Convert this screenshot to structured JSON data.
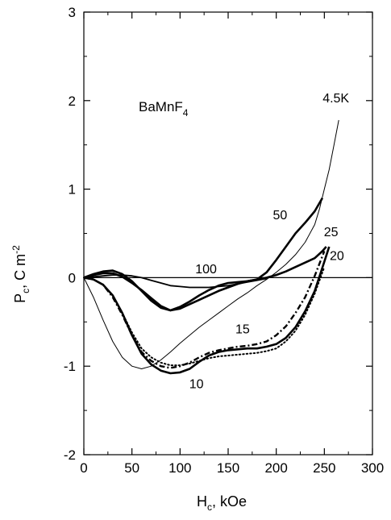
{
  "chart_data": {
    "type": "line",
    "compound_label": {
      "main": "BaMnF",
      "sub": "4"
    },
    "xlabel": {
      "main": "H",
      "sub": "c",
      "rest": ", kOe"
    },
    "ylabel": {
      "main": "P",
      "sub": "c",
      "rest": ",  C m",
      "sup": "-2"
    },
    "xlim": [
      0,
      300
    ],
    "ylim": [
      -2,
      3
    ],
    "xticks": [
      0,
      50,
      100,
      150,
      200,
      250,
      300
    ],
    "yticks": [
      -2,
      -1,
      0,
      1,
      2,
      3
    ],
    "grid": false,
    "legend": "none",
    "series": [
      {
        "name": "4.5K",
        "style": "thin",
        "x": [
          0,
          10,
          20,
          30,
          40,
          50,
          60,
          70,
          80,
          90,
          100,
          110,
          120,
          130,
          140,
          150,
          160,
          170,
          180,
          190,
          200,
          210,
          220,
          230,
          240,
          245,
          250,
          255,
          260,
          265
        ],
        "y": [
          0,
          -0.22,
          -0.48,
          -0.72,
          -0.9,
          -1.0,
          -1.03,
          -1.0,
          -0.93,
          -0.84,
          -0.74,
          -0.65,
          -0.56,
          -0.48,
          -0.4,
          -0.32,
          -0.24,
          -0.17,
          -0.09,
          -0.02,
          0.06,
          0.15,
          0.26,
          0.4,
          0.6,
          0.78,
          1.0,
          1.22,
          1.5,
          1.78
        ]
      },
      {
        "name": "10",
        "style": "thick",
        "x": [
          0,
          10,
          20,
          30,
          40,
          50,
          60,
          70,
          80,
          90,
          100,
          110,
          120,
          130,
          140,
          150,
          160,
          170,
          180,
          190,
          200,
          210,
          220,
          230,
          240,
          250,
          255
        ],
        "y": [
          0,
          -0.02,
          -0.08,
          -0.2,
          -0.4,
          -0.65,
          -0.86,
          -0.98,
          -1.05,
          -1.08,
          -1.07,
          -1.03,
          -0.95,
          -0.88,
          -0.84,
          -0.82,
          -0.81,
          -0.8,
          -0.8,
          -0.78,
          -0.75,
          -0.68,
          -0.56,
          -0.38,
          -0.15,
          0.18,
          0.35
        ]
      },
      {
        "name": "15",
        "style": "dashdot",
        "x": [
          0,
          10,
          20,
          30,
          40,
          50,
          60,
          70,
          80,
          90,
          100,
          110,
          120,
          130,
          140,
          150,
          160,
          170,
          180,
          190,
          200,
          210,
          220,
          230,
          240,
          250
        ],
        "y": [
          0,
          -0.02,
          -0.08,
          -0.22,
          -0.42,
          -0.65,
          -0.84,
          -0.94,
          -1.0,
          -1.02,
          -1.0,
          -0.96,
          -0.9,
          -0.85,
          -0.82,
          -0.8,
          -0.78,
          -0.77,
          -0.75,
          -0.72,
          -0.65,
          -0.55,
          -0.4,
          -0.22,
          0.02,
          0.3
        ]
      },
      {
        "name": "20",
        "style": "dotted",
        "x": [
          0,
          10,
          20,
          30,
          40,
          50,
          60,
          70,
          80,
          90,
          100,
          110,
          120,
          130,
          140,
          150,
          160,
          170,
          180,
          190,
          200,
          210,
          220,
          230,
          240,
          250
        ],
        "y": [
          0,
          -0.02,
          -0.08,
          -0.2,
          -0.4,
          -0.62,
          -0.8,
          -0.9,
          -0.96,
          -0.99,
          -0.99,
          -0.97,
          -0.94,
          -0.91,
          -0.89,
          -0.88,
          -0.87,
          -0.86,
          -0.85,
          -0.83,
          -0.8,
          -0.72,
          -0.6,
          -0.42,
          -0.18,
          0.12
        ]
      },
      {
        "name": "25",
        "style": "thick",
        "x": [
          0,
          10,
          20,
          30,
          40,
          50,
          60,
          70,
          80,
          90,
          100,
          110,
          120,
          130,
          140,
          150,
          160,
          170,
          180,
          190,
          200,
          210,
          220,
          230,
          240,
          248,
          252
        ],
        "y": [
          0,
          0.03,
          0.05,
          0.05,
          0.01,
          -0.06,
          -0.14,
          -0.23,
          -0.32,
          -0.37,
          -0.35,
          -0.3,
          -0.25,
          -0.2,
          -0.15,
          -0.11,
          -0.07,
          -0.04,
          -0.02,
          0.0,
          0.03,
          0.07,
          0.12,
          0.17,
          0.22,
          0.3,
          0.35
        ]
      },
      {
        "name": "50",
        "style": "thick",
        "x": [
          0,
          10,
          20,
          30,
          40,
          50,
          60,
          70,
          80,
          90,
          100,
          110,
          120,
          130,
          140,
          150,
          160,
          170,
          180,
          190,
          200,
          210,
          220,
          230,
          240,
          248
        ],
        "y": [
          0,
          0.04,
          0.07,
          0.08,
          0.04,
          -0.04,
          -0.15,
          -0.26,
          -0.34,
          -0.37,
          -0.33,
          -0.27,
          -0.2,
          -0.14,
          -0.09,
          -0.06,
          -0.05,
          -0.04,
          -0.02,
          0.06,
          0.2,
          0.35,
          0.5,
          0.62,
          0.75,
          0.9
        ]
      },
      {
        "name": "100",
        "style": "medium",
        "x": [
          0,
          10,
          20,
          30,
          40,
          50,
          60,
          70,
          80,
          90,
          100,
          110,
          120,
          130,
          140,
          150,
          160,
          170,
          180,
          190
        ],
        "y": [
          0,
          0.01,
          0.02,
          0.03,
          0.03,
          0.02,
          0.0,
          -0.03,
          -0.06,
          -0.09,
          -0.1,
          -0.11,
          -0.11,
          -0.11,
          -0.1,
          -0.09,
          -0.07,
          -0.05,
          -0.03,
          -0.01
        ]
      }
    ],
    "curve_labels": [
      {
        "text": "4.5K",
        "x": 262,
        "y": 1.98
      },
      {
        "text": "50",
        "x": 204,
        "y": 0.66
      },
      {
        "text": "25",
        "x": 257,
        "y": 0.47
      },
      {
        "text": "20",
        "x": 263,
        "y": 0.2
      },
      {
        "text": "100",
        "x": 127,
        "y": 0.05
      },
      {
        "text": "15",
        "x": 165,
        "y": -0.63
      },
      {
        "text": "10",
        "x": 117,
        "y": -1.25
      }
    ]
  }
}
